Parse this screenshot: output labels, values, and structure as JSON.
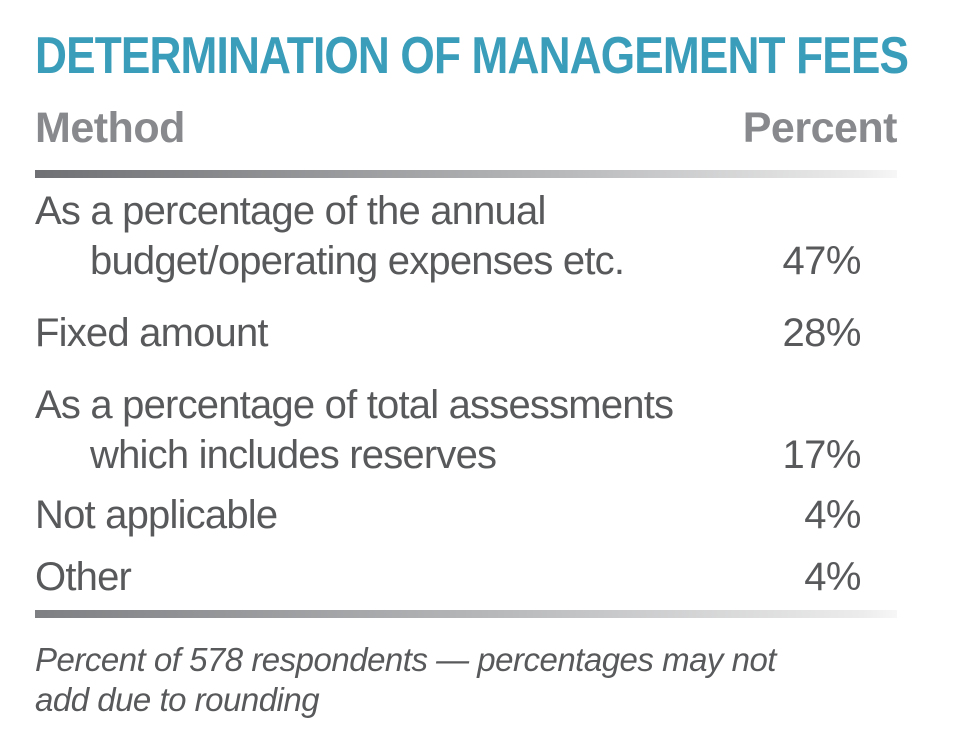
{
  "title": "DETERMINATION OF MANAGEMENT FEES",
  "table": {
    "headers": {
      "method": "Method",
      "percent": "Percent"
    },
    "rows": [
      {
        "line1": "As a percentage of the annual",
        "line2": "budget/operating expenses etc.",
        "value": "47%"
      },
      {
        "line1": "Fixed amount",
        "value": "28%"
      },
      {
        "line1": "As a percentage of total assessments",
        "line2": "which includes reserves",
        "value": "17%"
      },
      {
        "line1": "Not applicable",
        "value": "4%"
      },
      {
        "line1": "Other",
        "value": "4%"
      }
    ]
  },
  "footnote": {
    "line1": "Percent of 578 respondents — percentages may not",
    "line2": "add due to rounding"
  },
  "colors": {
    "accent_teal": "#3A9DBA",
    "header_gray": "#87898C",
    "body_gray": "#58595B",
    "rule_dark": "#6E7073",
    "rule_light": "#ECECEC"
  },
  "chart_data": {
    "type": "table",
    "title": "DETERMINATION OF MANAGEMENT FEES",
    "columns": [
      "Method",
      "Percent"
    ],
    "categories": [
      "As a percentage of the annual budget/operating expenses etc.",
      "Fixed amount",
      "As a percentage of total assessments which includes reserves",
      "Not applicable",
      "Other"
    ],
    "values": [
      47,
      28,
      17,
      4,
      4
    ],
    "value_unit": "%",
    "sample_size": 578,
    "note": "Percent of 578 respondents — percentages may not add due to rounding"
  }
}
